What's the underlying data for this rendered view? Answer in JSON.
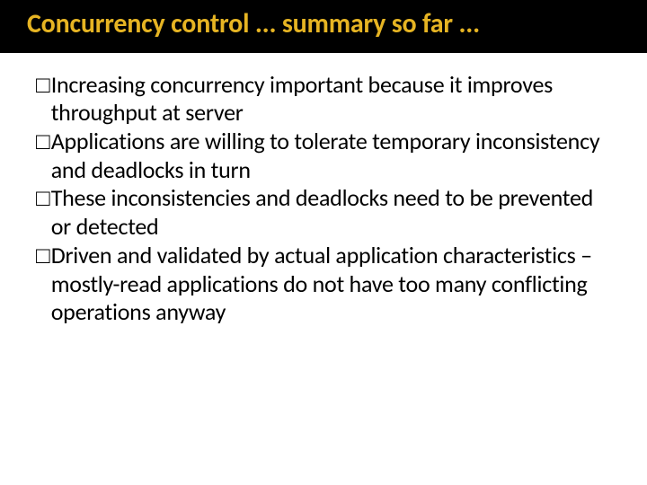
{
  "slide": {
    "title": "Concurrency control ... summary so far ...",
    "title_color": "#e6b423",
    "title_bg": "#000000",
    "title_fontsize": 30,
    "body_fontsize": 26,
    "body_color": "#000000",
    "bullet_glyph": "□",
    "bullets": [
      "Increasing concurrency important because it improves throughput at server",
      "Applications are willing to tolerate temporary inconsistency and deadlocks in turn",
      "These inconsistencies and deadlocks need to be prevented or detected",
      "Driven and validated by actual application characteristics – mostly-read applications do not have too many conflicting operations anyway"
    ],
    "background_color": "#ffffff"
  }
}
